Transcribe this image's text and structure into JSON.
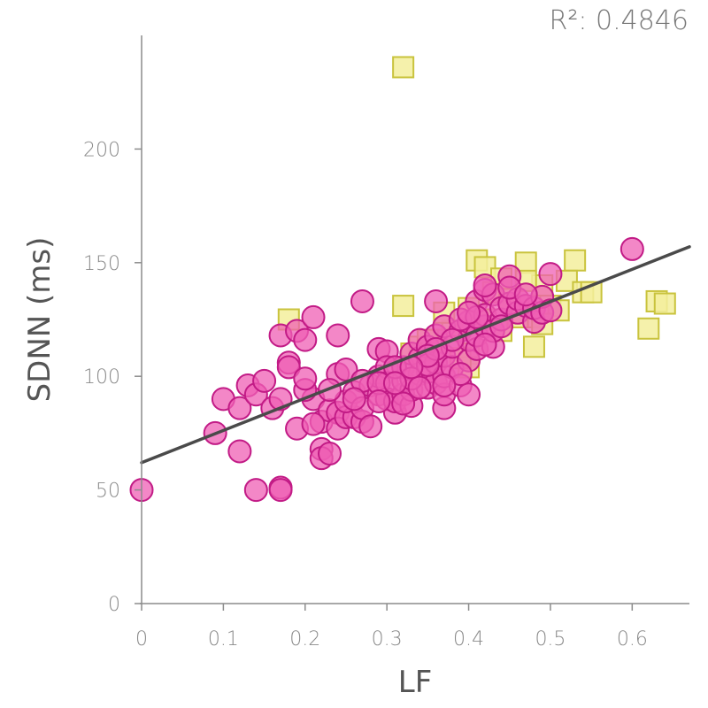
{
  "chart_data": {
    "type": "scatter",
    "annotation": "R²: 0.4846",
    "xlabel": "LF",
    "ylabel": "SDNN (ms)",
    "xlim": [
      0,
      0.67
    ],
    "ylim": [
      0,
      250
    ],
    "x_ticks": [
      "0",
      "0.1",
      "0.2",
      "0.3",
      "0.4",
      "0.5",
      "0.6"
    ],
    "y_ticks": [
      "0",
      "50",
      "100",
      "150",
      "200"
    ],
    "grid": false,
    "colors": {
      "circle_fill": "#ef5fb4",
      "circle_stroke": "#c21b86",
      "square_fill": "#f3ef9c",
      "square_stroke": "#c9c33d",
      "line": "#4a4a4a"
    },
    "regression": {
      "x": [
        0,
        0.67
      ],
      "y": [
        62,
        157
      ]
    },
    "series": [
      {
        "marker": "square",
        "points": [
          [
            0.32,
            236
          ],
          [
            0.41,
            151
          ],
          [
            0.42,
            148
          ],
          [
            0.47,
            150
          ],
          [
            0.53,
            151
          ],
          [
            0.52,
            142
          ],
          [
            0.54,
            137
          ],
          [
            0.49,
            140
          ],
          [
            0.43,
            137
          ],
          [
            0.45,
            134
          ],
          [
            0.5,
            131
          ],
          [
            0.51,
            129
          ],
          [
            0.48,
            126
          ],
          [
            0.49,
            123
          ],
          [
            0.48,
            113
          ],
          [
            0.44,
            120
          ],
          [
            0.46,
            126
          ],
          [
            0.4,
            130
          ],
          [
            0.42,
            125
          ],
          [
            0.38,
            120
          ],
          [
            0.36,
            116
          ],
          [
            0.34,
            113
          ],
          [
            0.4,
            110
          ],
          [
            0.4,
            104
          ],
          [
            0.39,
            108
          ],
          [
            0.32,
            131
          ],
          [
            0.18,
            125
          ],
          [
            0.37,
            128
          ],
          [
            0.63,
            133
          ],
          [
            0.64,
            132
          ],
          [
            0.62,
            121
          ],
          [
            0.55,
            137
          ],
          [
            0.47,
            142
          ],
          [
            0.44,
            143
          ],
          [
            0.35,
            116
          ],
          [
            0.33,
            110
          ]
        ]
      },
      {
        "marker": "circle",
        "points": [
          [
            0.0,
            50
          ],
          [
            0.14,
            50
          ],
          [
            0.17,
            51
          ],
          [
            0.17,
            50
          ],
          [
            0.09,
            75
          ],
          [
            0.12,
            67
          ],
          [
            0.1,
            90
          ],
          [
            0.12,
            86
          ],
          [
            0.13,
            96
          ],
          [
            0.14,
            92
          ],
          [
            0.15,
            98
          ],
          [
            0.16,
            86
          ],
          [
            0.17,
            90
          ],
          [
            0.18,
            106
          ],
          [
            0.18,
            104
          ],
          [
            0.17,
            118
          ],
          [
            0.19,
            120
          ],
          [
            0.2,
            116
          ],
          [
            0.21,
            126
          ],
          [
            0.24,
            118
          ],
          [
            0.27,
            133
          ],
          [
            0.19,
            77
          ],
          [
            0.21,
            90
          ],
          [
            0.2,
            94
          ],
          [
            0.2,
            99
          ],
          [
            0.22,
            68
          ],
          [
            0.22,
            64
          ],
          [
            0.23,
            66
          ],
          [
            0.22,
            80
          ],
          [
            0.23,
            85
          ],
          [
            0.24,
            84
          ],
          [
            0.24,
            77
          ],
          [
            0.25,
            82
          ],
          [
            0.26,
            82
          ],
          [
            0.27,
            80
          ],
          [
            0.24,
            101
          ],
          [
            0.25,
            103
          ],
          [
            0.25,
            89
          ],
          [
            0.26,
            93
          ],
          [
            0.27,
            86
          ],
          [
            0.28,
            78
          ],
          [
            0.28,
            96
          ],
          [
            0.29,
            92
          ],
          [
            0.29,
            100
          ],
          [
            0.29,
            112
          ],
          [
            0.3,
            111
          ],
          [
            0.3,
            104
          ],
          [
            0.3,
            97
          ],
          [
            0.3,
            90
          ],
          [
            0.31,
            84
          ],
          [
            0.31,
            89
          ],
          [
            0.32,
            92
          ],
          [
            0.32,
            98
          ],
          [
            0.32,
            104
          ],
          [
            0.33,
            110
          ],
          [
            0.33,
            87
          ],
          [
            0.33,
            94
          ],
          [
            0.34,
            101
          ],
          [
            0.34,
            108
          ],
          [
            0.34,
            116
          ],
          [
            0.35,
            95
          ],
          [
            0.35,
            102
          ],
          [
            0.35,
            113
          ],
          [
            0.36,
            118
          ],
          [
            0.36,
            97
          ],
          [
            0.36,
            106
          ],
          [
            0.37,
            86
          ],
          [
            0.37,
            92
          ],
          [
            0.37,
            100
          ],
          [
            0.37,
            109
          ],
          [
            0.37,
            122
          ],
          [
            0.36,
            133
          ],
          [
            0.38,
            104
          ],
          [
            0.38,
            113
          ],
          [
            0.39,
            120
          ],
          [
            0.39,
            96
          ],
          [
            0.4,
            92
          ],
          [
            0.4,
            107
          ],
          [
            0.4,
            116
          ],
          [
            0.4,
            124
          ],
          [
            0.41,
            112
          ],
          [
            0.41,
            118
          ],
          [
            0.41,
            133
          ],
          [
            0.42,
            122
          ],
          [
            0.42,
            127
          ],
          [
            0.42,
            138
          ],
          [
            0.43,
            113
          ],
          [
            0.43,
            120
          ],
          [
            0.43,
            136
          ],
          [
            0.44,
            125
          ],
          [
            0.44,
            130
          ],
          [
            0.45,
            132
          ],
          [
            0.45,
            144
          ],
          [
            0.46,
            128
          ],
          [
            0.46,
            134
          ],
          [
            0.47,
            131
          ],
          [
            0.48,
            124
          ],
          [
            0.48,
            130
          ],
          [
            0.49,
            128
          ],
          [
            0.49,
            135
          ],
          [
            0.5,
            129
          ],
          [
            0.5,
            145
          ],
          [
            0.6,
            156
          ],
          [
            0.27,
            98
          ],
          [
            0.31,
            104
          ],
          [
            0.33,
            99
          ],
          [
            0.35,
            105
          ],
          [
            0.38,
            116
          ],
          [
            0.39,
            125
          ],
          [
            0.41,
            126
          ],
          [
            0.42,
            114
          ],
          [
            0.36,
            112
          ],
          [
            0.34,
            95
          ],
          [
            0.32,
            88
          ],
          [
            0.29,
            97
          ],
          [
            0.26,
            90
          ],
          [
            0.23,
            94
          ],
          [
            0.31,
            97
          ],
          [
            0.35,
            109
          ],
          [
            0.39,
            101
          ],
          [
            0.42,
            140
          ],
          [
            0.44,
            122
          ],
          [
            0.29,
            89
          ],
          [
            0.37,
            96
          ],
          [
            0.4,
            128
          ],
          [
            0.45,
            139
          ],
          [
            0.47,
            136
          ],
          [
            0.21,
            79
          ],
          [
            0.33,
            104
          ]
        ]
      }
    ]
  }
}
